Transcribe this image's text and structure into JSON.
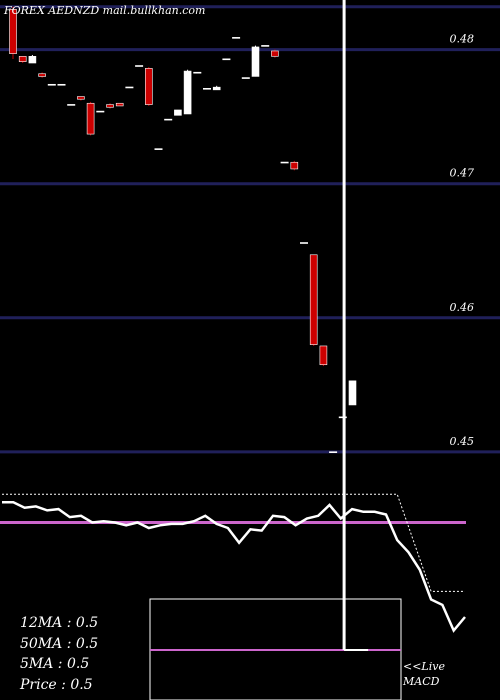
{
  "header": {
    "title": "FOREX  AEDNZD mail.bullkhan.com"
  },
  "legend": {
    "ma12": "12MA : 0.5",
    "ma50": "50MA : 0.5",
    "ma5": "5MA : 0.5",
    "price": "Price   : 0.5"
  },
  "macd_panel": {
    "live_label": "<<Live",
    "macd_label": "MACD"
  },
  "colors": {
    "background": "#000000",
    "grid": "#20205a",
    "bear": "#cc0000",
    "bull": "#ffffff",
    "magenta": "#cc66cc",
    "text": "#ffffff"
  },
  "chart_data": {
    "type": "candlestick",
    "ylim": [
      0.4463,
      0.4815
    ],
    "gridlines": [
      0.4478,
      0.4578,
      0.4678,
      0.4778,
      0.481
    ],
    "y_tick_labels": [
      "0.45",
      "0.46",
      "0.47",
      "0.48",
      "0.48"
    ],
    "candles": [
      {
        "o": 0.4808,
        "h": 0.481,
        "l": 0.4771,
        "c": 0.4775
      },
      {
        "o": 0.4773,
        "h": 0.4773,
        "l": 0.4768,
        "c": 0.4769
      },
      {
        "o": 0.4768,
        "h": 0.4774,
        "l": 0.4768,
        "c": 0.4773
      },
      {
        "o": 0.476,
        "h": 0.4761,
        "l": 0.4757,
        "c": 0.4758
      },
      {
        "o": 0.4752,
        "h": 0.4752,
        "l": 0.4752,
        "c": 0.4752
      },
      {
        "o": 0.4752,
        "h": 0.4752,
        "l": 0.4752,
        "c": 0.4752
      },
      {
        "o": 0.4737,
        "h": 0.4737,
        "l": 0.4737,
        "c": 0.4737
      },
      {
        "o": 0.4743,
        "h": 0.4743,
        "l": 0.474,
        "c": 0.4741
      },
      {
        "o": 0.4738,
        "h": 0.4739,
        "l": 0.4714,
        "c": 0.4715
      },
      {
        "o": 0.4732,
        "h": 0.4732,
        "l": 0.4732,
        "c": 0.4732
      },
      {
        "o": 0.4737,
        "h": 0.4738,
        "l": 0.4734,
        "c": 0.4735
      },
      {
        "o": 0.4738,
        "h": 0.4738,
        "l": 0.4736,
        "c": 0.4736
      },
      {
        "o": 0.475,
        "h": 0.475,
        "l": 0.475,
        "c": 0.475
      },
      {
        "o": 0.4765,
        "h": 0.4767,
        "l": 0.4765,
        "c": 0.4766
      },
      {
        "o": 0.4764,
        "h": 0.4765,
        "l": 0.4736,
        "c": 0.4737
      },
      {
        "o": 0.4704,
        "h": 0.4704,
        "l": 0.4704,
        "c": 0.4704
      },
      {
        "o": 0.4726,
        "h": 0.4726,
        "l": 0.4726,
        "c": 0.4726
      },
      {
        "o": 0.4729,
        "h": 0.4733,
        "l": 0.4729,
        "c": 0.4733
      },
      {
        "o": 0.473,
        "h": 0.4763,
        "l": 0.473,
        "c": 0.4762
      },
      {
        "o": 0.476,
        "h": 0.4762,
        "l": 0.476,
        "c": 0.4761
      },
      {
        "o": 0.4749,
        "h": 0.4749,
        "l": 0.4748,
        "c": 0.4748
      },
      {
        "o": 0.4748,
        "h": 0.4751,
        "l": 0.4748,
        "c": 0.475
      },
      {
        "o": 0.4771,
        "h": 0.4771,
        "l": 0.4771,
        "c": 0.4771
      },
      {
        "o": 0.4787,
        "h": 0.4787,
        "l": 0.4787,
        "c": 0.4787
      },
      {
        "o": 0.4757,
        "h": 0.4757,
        "l": 0.4757,
        "c": 0.4757
      },
      {
        "o": 0.4758,
        "h": 0.4781,
        "l": 0.4758,
        "c": 0.478
      },
      {
        "o": 0.478,
        "h": 0.4781,
        "l": 0.478,
        "c": 0.4781
      },
      {
        "o": 0.4777,
        "h": 0.4778,
        "l": 0.4772,
        "c": 0.4773
      },
      {
        "o": 0.4694,
        "h": 0.4695,
        "l": 0.4694,
        "c": 0.4694
      },
      {
        "o": 0.4694,
        "h": 0.4695,
        "l": 0.4688,
        "c": 0.4689
      },
      {
        "o": 0.4634,
        "h": 0.4635,
        "l": 0.4634,
        "c": 0.4634
      },
      {
        "o": 0.4625,
        "h": 0.4625,
        "l": 0.4557,
        "c": 0.4558
      },
      {
        "o": 0.4557,
        "h": 0.4557,
        "l": 0.4542,
        "c": 0.4543
      },
      {
        "o": 0.4478,
        "h": 0.4478,
        "l": 0.4478,
        "c": 0.4478
      },
      {
        "o": 0.4503,
        "h": 0.4505,
        "l": 0.4503,
        "c": 0.4504
      },
      {
        "o": 0.4513,
        "h": 0.4531,
        "l": 0.4513,
        "c": 0.4531
      }
    ],
    "live_cursor": {
      "index": 33
    },
    "indicator": {
      "line": [
        0.52,
        0.52,
        0.48,
        0.49,
        0.46,
        0.47,
        0.41,
        0.42,
        0.37,
        0.38,
        0.37,
        0.35,
        0.37,
        0.33,
        0.35,
        0.36,
        0.36,
        0.38,
        0.42,
        0.36,
        0.33,
        0.22,
        0.32,
        0.31,
        0.42,
        0.41,
        0.35,
        0.4,
        0.42,
        0.5,
        0.4,
        0.47,
        0.45,
        0.45,
        0.43,
        0.24,
        0.15,
        0.02,
        -0.2,
        -0.24,
        -0.43,
        -0.33
      ],
      "signal": [
        0.58,
        0.58,
        0.58,
        0.58,
        0.58,
        0.58,
        0.58,
        0.58,
        0.58,
        0.58,
        0.58,
        0.58,
        0.58,
        0.58,
        0.58,
        0.58,
        0.58,
        0.58,
        0.58,
        0.58,
        0.58,
        0.58,
        0.58,
        0.58,
        0.58,
        0.58,
        0.58,
        0.58,
        0.58,
        0.58,
        0.58,
        0.58,
        0.58,
        0.58,
        0.58,
        0.58,
        0.34,
        0.1,
        -0.14,
        -0.14,
        -0.14,
        -0.14
      ],
      "reference": 0.37,
      "ylim": [
        -0.5,
        0.7
      ]
    },
    "macd": {
      "reference": 0.1,
      "ylim": [
        0,
        1
      ]
    }
  }
}
